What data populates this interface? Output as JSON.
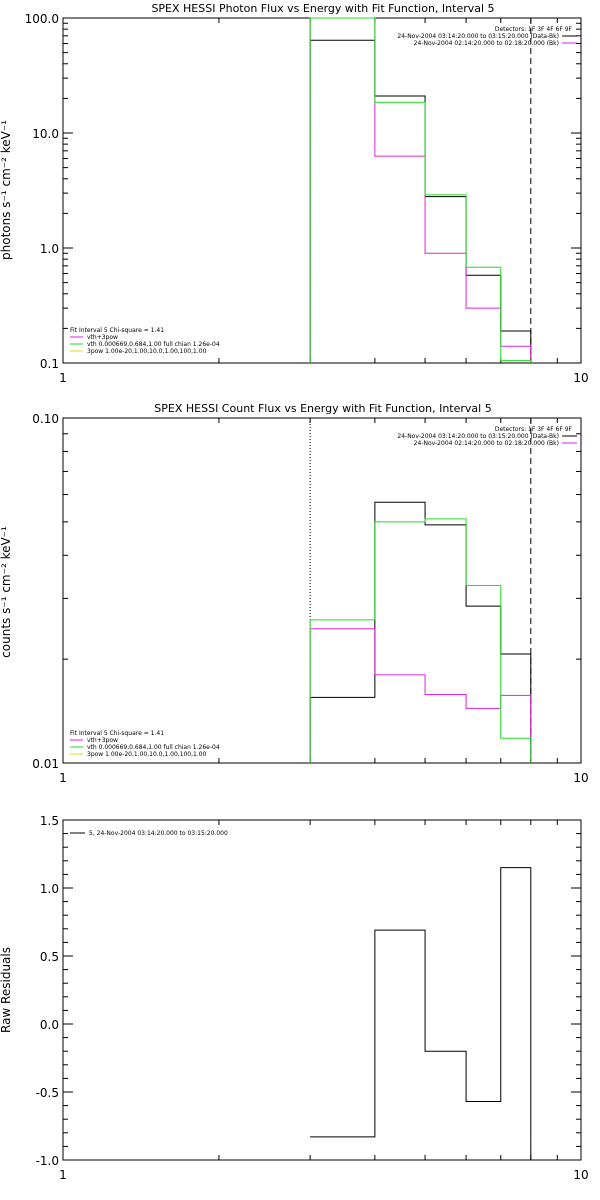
{
  "chart_data": [
    {
      "type": "line",
      "title": "SPEX HESSI Photon Flux vs Energy with Fit Function, Interval 5",
      "ylabel": "photons s⁻¹ cm⁻² keV⁻¹",
      "xlabel": "",
      "xscale": "log",
      "yscale": "log",
      "xlim": [
        1,
        10
      ],
      "ylim": [
        0.1,
        100.0
      ],
      "xticks": [
        {
          "value": 1,
          "label": "1"
        },
        {
          "value": 10,
          "label": "10"
        }
      ],
      "yticks": [
        {
          "value": 0.1,
          "label": "0.1"
        },
        {
          "value": 1,
          "label": "1.0"
        },
        {
          "value": 10,
          "label": "10.0"
        },
        {
          "value": 100,
          "label": "100.0"
        }
      ],
      "vlines": [
        {
          "x": 3.0,
          "style": "dotted",
          "color": "#000000"
        },
        {
          "x": 8.0,
          "style": "dashed",
          "color": "#000000"
        }
      ],
      "bin_edges": [
        3.0,
        4.0,
        5.0,
        6.0,
        7.0,
        8.0
      ],
      "series": [
        {
          "color": "#000000",
          "values": [
            64.0,
            21.0,
            2.8,
            0.58,
            0.19
          ]
        },
        {
          "color": "#dd22dd",
          "values": [
            100.0,
            6.3,
            0.9,
            0.3,
            0.14
          ]
        },
        {
          "color": "#22dd22",
          "values": [
            100.0,
            18.5,
            2.9,
            0.68,
            0.105
          ]
        }
      ],
      "legend_top": {
        "header": "Detectors: 1F 3F 4F 6F 9F",
        "entries": [
          {
            "text": "24-Nov-2004 03:14:20.000 to 03:15:20.000 (Data-Bk)",
            "color": "#000000"
          },
          {
            "text": "24-Nov-2004 02:14:20.000 to 02:18:20.000 (Bk)",
            "color": "#dd22dd"
          }
        ]
      },
      "legend_bottom": {
        "header": "Fit Interval 5   Chi-square = 1.41",
        "entries": [
          {
            "text": "vth+3pow",
            "color": "#dd22dd"
          },
          {
            "text": "vth 0.000669,0.684,1.00  full chian 1.26e-04",
            "color": "#22dd22"
          },
          {
            "text": "3pow 1.00e-20,1.00,10.0,1.00,100,1.00",
            "color": "#dddd22"
          }
        ]
      }
    },
    {
      "type": "line",
      "title": "SPEX HESSI Count Flux vs Energy with Fit Function, Interval 5",
      "ylabel": "counts s⁻¹ cm⁻² keV⁻¹",
      "xlabel": "",
      "xscale": "log",
      "yscale": "log",
      "xlim": [
        1,
        10
      ],
      "ylim": [
        0.01,
        0.1
      ],
      "xticks": [
        {
          "value": 1,
          "label": "1"
        },
        {
          "value": 10,
          "label": "10"
        }
      ],
      "yticks": [
        {
          "value": 0.01,
          "label": "0.01"
        },
        {
          "value": 0.1,
          "label": "0.10"
        }
      ],
      "vlines": [
        {
          "x": 3.0,
          "style": "dotted",
          "color": "#000000"
        },
        {
          "x": 8.0,
          "style": "dashed",
          "color": "#000000"
        }
      ],
      "bin_edges": [
        3.0,
        4.0,
        5.0,
        6.0,
        7.0,
        8.0
      ],
      "series": [
        {
          "color": "#000000",
          "values": [
            0.0155,
            0.057,
            0.049,
            0.0285,
            0.0207
          ]
        },
        {
          "color": "#dd22dd",
          "values": [
            0.0245,
            0.018,
            0.0158,
            0.0144,
            0.0157
          ]
        },
        {
          "color": "#22dd22",
          "values": [
            0.026,
            0.05,
            0.051,
            0.0327,
            0.0118
          ]
        }
      ],
      "legend_top": {
        "header": "Detectors: 1F 3F 4F 6F 9F",
        "entries": [
          {
            "text": "24-Nov-2004 03:14:20.000 to 03:15:20.000 (Data-Bk)",
            "color": "#000000"
          },
          {
            "text": "24-Nov-2004 02:14:20.000 to 02:18:20.000 (Bk)",
            "color": "#dd22dd"
          }
        ]
      },
      "legend_bottom": {
        "header": "Fit Interval 5   Chi-square = 1.41",
        "entries": [
          {
            "text": "vth+3pow",
            "color": "#dd22dd"
          },
          {
            "text": "vth 0.000669,0.684,1.00  full chian 1.26e-04",
            "color": "#22dd22"
          },
          {
            "text": "3pow 1.00e-20,1.00,10.0,1.00,100,1.00",
            "color": "#dddd22"
          }
        ]
      }
    },
    {
      "type": "line",
      "title": "",
      "ylabel": "Raw Residuals",
      "xlabel": "",
      "xscale": "log",
      "yscale": "linear",
      "xlim": [
        1,
        10
      ],
      "ylim": [
        -1.0,
        1.5
      ],
      "xticks": [
        {
          "value": 1,
          "label": "1"
        },
        {
          "value": 10,
          "label": "10"
        }
      ],
      "yticks": [
        {
          "value": -1.0,
          "label": "-1.0"
        },
        {
          "value": -0.5,
          "label": "-0.5"
        },
        {
          "value": 0.0,
          "label": "0.0"
        },
        {
          "value": 0.5,
          "label": "0.5"
        },
        {
          "value": 1.0,
          "label": "1.0"
        },
        {
          "value": 1.5,
          "label": "1.5"
        }
      ],
      "vlines": [],
      "bin_edges": [
        3.0,
        4.0,
        5.0,
        6.0,
        7.0,
        8.0
      ],
      "series": [
        {
          "color": "#000000",
          "values": [
            -0.83,
            0.69,
            -0.2,
            -0.57,
            1.15
          ]
        }
      ],
      "legend_top": {
        "header": "",
        "entries": [
          {
            "text": "5, 24-Nov-2004 03:14:20.000 to 03:15:20.000",
            "color": "#000000"
          }
        ]
      },
      "legend_bottom": {
        "header": "",
        "entries": []
      }
    }
  ]
}
